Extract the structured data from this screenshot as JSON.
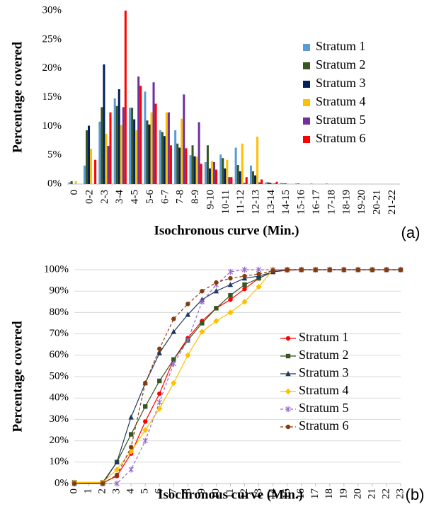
{
  "chart_data": [
    {
      "type": "bar",
      "panel_label": "(a)",
      "x_label": "Isochronous curve (Min.)",
      "y_label": "Percentage covered",
      "categories": [
        "0",
        "0-2",
        "2-3",
        "3-4",
        "4-5",
        "5-6",
        "6-7",
        "7-8",
        "8-9",
        "9-10",
        "10-11",
        "11-12",
        "12-13",
        "13-14",
        "14-15",
        "15-16",
        "16-17",
        "17-18",
        "18-19",
        "19-20",
        "20-21",
        "21-22"
      ],
      "series": [
        {
          "name": "Stratum 1",
          "color": "#5b9bd5",
          "values": [
            0.3,
            3.2,
            10.8,
            14.8,
            13.2,
            16.0,
            9.3,
            9.3,
            5.0,
            3.8,
            5.1,
            6.3,
            3.2,
            0.3,
            0.2,
            0.1,
            0.1,
            0.1,
            0,
            0,
            0,
            0
          ]
        },
        {
          "name": "Stratum 2",
          "color": "#375623",
          "values": [
            0.5,
            9.3,
            13.3,
            13.5,
            13.2,
            11.0,
            9.0,
            7.0,
            6.7,
            6.7,
            4.5,
            3.3,
            2.2,
            0.3,
            0.1,
            0.1,
            0,
            0,
            0,
            0,
            0,
            0
          ]
        },
        {
          "name": "Stratum 3",
          "color": "#002060",
          "values": [
            0,
            10.1,
            20.7,
            16.4,
            11.2,
            10.3,
            8.3,
            6.3,
            4.8,
            2.7,
            2.7,
            2.2,
            1.5,
            0.2,
            0.1,
            0,
            0,
            0,
            0,
            0,
            0,
            0
          ]
        },
        {
          "name": "Stratum 4",
          "color": "#ffc000",
          "values": [
            0.5,
            6.1,
            8.7,
            10.2,
            9.3,
            12.4,
            12.4,
            11.3,
            4.7,
            4.0,
            4.2,
            7.0,
            8.2,
            0.2,
            0.1,
            0,
            0,
            0,
            0,
            0,
            0,
            0
          ]
        },
        {
          "name": "Stratum 5",
          "color": "#7030a0",
          "values": [
            0,
            0,
            6.6,
            13.3,
            18.6,
            17.6,
            12.4,
            15.5,
            10.7,
            3.8,
            1.2,
            0.2,
            0.3,
            0.1,
            0,
            0,
            0,
            0,
            0,
            0,
            0,
            0
          ]
        },
        {
          "name": "Stratum 6",
          "color": "#ff0000",
          "values": [
            0,
            4.2,
            12.4,
            30,
            17.0,
            13.9,
            6.7,
            6.2,
            3.5,
            2.5,
            1.2,
            1.2,
            0.8,
            0.4,
            0,
            0,
            0,
            0,
            0,
            0,
            0,
            0
          ]
        }
      ],
      "ylim": [
        0,
        30
      ],
      "yticks": [
        {
          "value": 0,
          "label": "0%"
        },
        {
          "value": 5,
          "label": "5%"
        },
        {
          "value": 10,
          "label": "10%"
        },
        {
          "value": 15,
          "label": "15%"
        },
        {
          "value": 20,
          "label": "20%"
        },
        {
          "value": 25,
          "label": "25%"
        },
        {
          "value": 30,
          "label": "30%"
        }
      ],
      "grid": false,
      "legend": "right"
    },
    {
      "type": "line",
      "panel_label": "(b)",
      "x_label": "Isochronous curve (Min.)",
      "y_label": "Percentage covered",
      "x": [
        0,
        2,
        3,
        4,
        5,
        6,
        7,
        8,
        9,
        10,
        11,
        12,
        13,
        14,
        15,
        16,
        17,
        18,
        19,
        20,
        21,
        22,
        23
      ],
      "series": [
        {
          "name": "Stratum 1",
          "color": "#ff0000",
          "marker": "circle",
          "dash": false,
          "values": [
            0,
            0.3,
            3.5,
            14,
            29,
            42,
            58,
            68,
            76,
            82,
            86,
            91,
            96,
            99,
            99.7,
            100,
            100,
            100,
            100,
            100,
            100,
            100,
            100
          ]
        },
        {
          "name": "Stratum 2",
          "color": "#375623",
          "marker": "square",
          "dash": false,
          "values": [
            0.5,
            0.5,
            10,
            23,
            36,
            48,
            58,
            67,
            75,
            82,
            88,
            93,
            96,
            99,
            100,
            100,
            100,
            100,
            100,
            100,
            100,
            100,
            100
          ]
        },
        {
          "name": "Stratum 3",
          "color": "#203864",
          "marker": "triangle",
          "dash": false,
          "values": [
            0,
            0,
            10,
            31,
            47,
            61,
            71,
            79,
            86,
            90,
            93,
            96,
            97,
            99,
            100,
            100,
            100,
            100,
            100,
            100,
            100,
            100,
            100
          ]
        },
        {
          "name": "Stratum 4",
          "color": "#ffc000",
          "marker": "diamond",
          "dash": false,
          "values": [
            0.5,
            0.5,
            6.5,
            15,
            25,
            35,
            47,
            60,
            71,
            76,
            80,
            85,
            92,
            100,
            100,
            100,
            100,
            100,
            100,
            100,
            100,
            100,
            100
          ]
        },
        {
          "name": "Stratum 5",
          "color": "#9966cc",
          "marker": "star",
          "dash": true,
          "values": [
            0,
            0,
            0,
            6.5,
            20,
            38,
            56,
            67,
            85,
            93,
            99,
            100,
            100,
            100,
            100,
            100,
            100,
            100,
            100,
            100,
            100,
            100,
            100
          ]
        },
        {
          "name": "Stratum 6",
          "color": "#843c0c",
          "marker": "circle",
          "dash": true,
          "values": [
            0,
            0,
            4,
            17,
            47,
            63,
            77,
            84,
            90,
            94,
            96,
            97,
            98,
            99.6,
            100,
            100,
            100,
            100,
            100,
            100,
            100,
            100,
            100
          ]
        }
      ],
      "xlim": [
        0,
        23
      ],
      "xticks": [
        0,
        1,
        2,
        3,
        4,
        5,
        6,
        7,
        8,
        9,
        10,
        11,
        12,
        13,
        14,
        15,
        16,
        17,
        18,
        19,
        20,
        21,
        22,
        23
      ],
      "ylim": [
        0,
        100
      ],
      "yticks": [
        {
          "value": 0,
          "label": "0%"
        },
        {
          "value": 10,
          "label": "10%"
        },
        {
          "value": 20,
          "label": "20%"
        },
        {
          "value": 30,
          "label": "30%"
        },
        {
          "value": 40,
          "label": "40%"
        },
        {
          "value": 50,
          "label": "50%"
        },
        {
          "value": 60,
          "label": "60%"
        },
        {
          "value": 70,
          "label": "70%"
        },
        {
          "value": 80,
          "label": "80%"
        },
        {
          "value": 90,
          "label": "90%"
        },
        {
          "value": 100,
          "label": "100%"
        }
      ],
      "grid": true,
      "legend": "right"
    }
  ]
}
